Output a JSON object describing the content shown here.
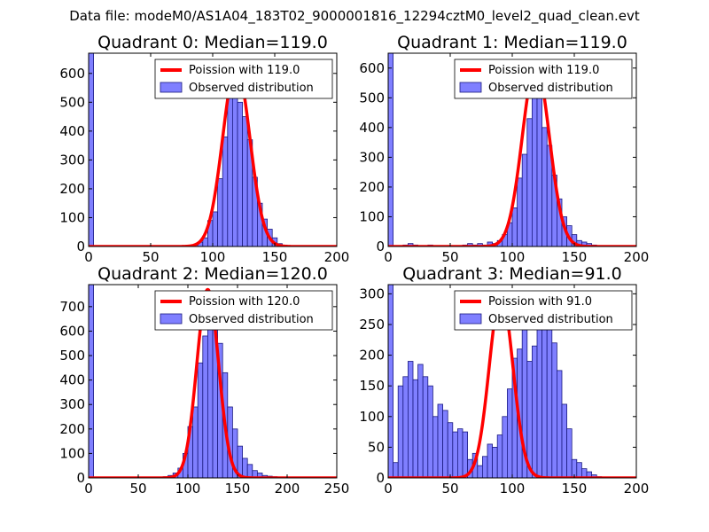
{
  "page_title": "Data file: modeM0/AS1A04_183T02_9000001816_12294cztM0_level2_quad_clean.evt",
  "colors": {
    "bar_fill": "#7f7fff",
    "bar_stroke": "#1a1a80",
    "poisson_line": "#ff0000",
    "axes": "#000000"
  },
  "chart_data": [
    {
      "type": "bar",
      "title": "Quadrant 0: Median=119.0",
      "xlim": [
        0,
        200
      ],
      "ylim": [
        0,
        670
      ],
      "xticks": [
        0,
        50,
        100,
        150,
        200
      ],
      "yticks": [
        0,
        100,
        200,
        300,
        400,
        500,
        600
      ],
      "legend_position": "top-right",
      "bin_width": 4,
      "bins": [
        [
          0,
          670
        ],
        [
          84,
          5
        ],
        [
          88,
          15
        ],
        [
          92,
          30
        ],
        [
          96,
          90
        ],
        [
          100,
          120
        ],
        [
          104,
          235
        ],
        [
          108,
          380
        ],
        [
          112,
          560
        ],
        [
          116,
          630
        ],
        [
          120,
          500
        ],
        [
          124,
          450
        ],
        [
          128,
          370
        ],
        [
          132,
          240
        ],
        [
          136,
          150
        ],
        [
          140,
          95
        ],
        [
          144,
          60
        ],
        [
          148,
          30
        ],
        [
          152,
          10
        ],
        [
          156,
          5
        ],
        [
          160,
          3
        ],
        [
          164,
          2
        ],
        [
          168,
          1
        ],
        [
          172,
          1
        ],
        [
          180,
          1
        ]
      ],
      "series": [
        {
          "name": "Poission with 119.0",
          "type": "line",
          "lambda": 119.0,
          "peak": 625
        },
        {
          "name": "Observed distribution",
          "type": "hist"
        }
      ]
    },
    {
      "type": "bar",
      "title": "Quadrant 1: Median=119.0",
      "xlim": [
        0,
        200
      ],
      "ylim": [
        0,
        650
      ],
      "xticks": [
        0,
        50,
        100,
        150,
        200
      ],
      "yticks": [
        0,
        100,
        200,
        300,
        400,
        500,
        600
      ],
      "legend_position": "top-right",
      "bin_width": 4,
      "bins": [
        [
          0,
          650
        ],
        [
          12,
          5
        ],
        [
          16,
          10
        ],
        [
          20,
          5
        ],
        [
          32,
          5
        ],
        [
          60,
          5
        ],
        [
          64,
          10
        ],
        [
          68,
          5
        ],
        [
          72,
          10
        ],
        [
          76,
          5
        ],
        [
          80,
          15
        ],
        [
          84,
          10
        ],
        [
          88,
          20
        ],
        [
          92,
          40
        ],
        [
          96,
          80
        ],
        [
          100,
          130
        ],
        [
          104,
          230
        ],
        [
          108,
          310
        ],
        [
          112,
          430
        ],
        [
          116,
          580
        ],
        [
          120,
          500
        ],
        [
          124,
          400
        ],
        [
          128,
          340
        ],
        [
          132,
          240
        ],
        [
          136,
          160
        ],
        [
          140,
          100
        ],
        [
          144,
          70
        ],
        [
          148,
          40
        ],
        [
          152,
          20
        ],
        [
          156,
          15
        ],
        [
          160,
          10
        ],
        [
          164,
          5
        ],
        [
          168,
          3
        ],
        [
          172,
          2
        ],
        [
          176,
          1
        ]
      ],
      "series": [
        {
          "name": "Poission with 119.0",
          "type": "line",
          "lambda": 119.0,
          "peak": 610
        },
        {
          "name": "Observed distribution",
          "type": "hist"
        }
      ]
    },
    {
      "type": "bar",
      "title": "Quadrant 2: Median=120.0",
      "xlim": [
        0,
        250
      ],
      "ylim": [
        0,
        790
      ],
      "xticks": [
        0,
        50,
        100,
        150,
        200,
        250
      ],
      "yticks": [
        0,
        100,
        200,
        300,
        400,
        500,
        600,
        700
      ],
      "legend_position": "top-right",
      "bin_width": 5,
      "bins": [
        [
          0,
          790
        ],
        [
          75,
          5
        ],
        [
          80,
          10
        ],
        [
          85,
          20
        ],
        [
          90,
          40
        ],
        [
          95,
          100
        ],
        [
          100,
          210
        ],
        [
          105,
          290
        ],
        [
          110,
          470
        ],
        [
          115,
          580
        ],
        [
          120,
          700
        ],
        [
          125,
          680
        ],
        [
          130,
          550
        ],
        [
          135,
          430
        ],
        [
          140,
          290
        ],
        [
          145,
          200
        ],
        [
          150,
          130
        ],
        [
          155,
          80
        ],
        [
          160,
          55
        ],
        [
          165,
          30
        ],
        [
          170,
          20
        ],
        [
          175,
          10
        ],
        [
          180,
          7
        ],
        [
          185,
          5
        ],
        [
          190,
          3
        ],
        [
          195,
          2
        ],
        [
          200,
          1
        ],
        [
          205,
          1
        ]
      ],
      "series": [
        {
          "name": "Poission with 120.0",
          "type": "line",
          "lambda": 120.0,
          "peak": 770
        },
        {
          "name": "Observed distribution",
          "type": "hist"
        }
      ]
    },
    {
      "type": "bar",
      "title": "Quadrant 3: Median=91.0",
      "xlim": [
        0,
        200
      ],
      "ylim": [
        0,
        315
      ],
      "xticks": [
        0,
        50,
        100,
        150,
        200
      ],
      "yticks": [
        0,
        50,
        100,
        150,
        200,
        250,
        300
      ],
      "legend_position": "top-right",
      "bin_width": 4,
      "bins": [
        [
          0,
          315
        ],
        [
          4,
          25
        ],
        [
          8,
          150
        ],
        [
          12,
          165
        ],
        [
          16,
          190
        ],
        [
          20,
          160
        ],
        [
          24,
          185
        ],
        [
          28,
          165
        ],
        [
          32,
          150
        ],
        [
          36,
          100
        ],
        [
          40,
          120
        ],
        [
          44,
          110
        ],
        [
          48,
          90
        ],
        [
          52,
          75
        ],
        [
          56,
          80
        ],
        [
          60,
          75
        ],
        [
          64,
          30
        ],
        [
          68,
          40
        ],
        [
          72,
          20
        ],
        [
          76,
          35
        ],
        [
          80,
          55
        ],
        [
          84,
          50
        ],
        [
          88,
          70
        ],
        [
          92,
          100
        ],
        [
          96,
          145
        ],
        [
          100,
          195
        ],
        [
          104,
          210
        ],
        [
          108,
          250
        ],
        [
          112,
          190
        ],
        [
          116,
          215
        ],
        [
          120,
          265
        ],
        [
          124,
          285
        ],
        [
          128,
          245
        ],
        [
          132,
          220
        ],
        [
          136,
          175
        ],
        [
          140,
          120
        ],
        [
          144,
          80
        ],
        [
          148,
          30
        ],
        [
          152,
          25
        ],
        [
          156,
          15
        ],
        [
          160,
          10
        ],
        [
          164,
          5
        ],
        [
          168,
          2
        ]
      ],
      "series": [
        {
          "name": "Poission with 91.0",
          "type": "line",
          "lambda": 91.0,
          "peak": 300
        },
        {
          "name": "Observed distribution",
          "type": "hist"
        }
      ]
    }
  ]
}
